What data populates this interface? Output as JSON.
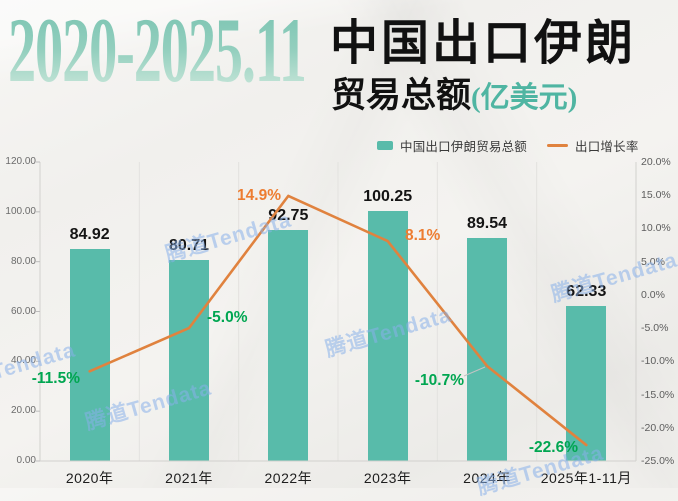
{
  "title": {
    "years": "2020-2025.11",
    "line1": "中国出口伊朗",
    "line2": "贸易总额",
    "line2_unit": "(亿美元)"
  },
  "legend": {
    "bar_label": "中国出口伊朗贸易总额",
    "line_label": "出口增长率"
  },
  "watermark": {
    "text": "腾道Tendata"
  },
  "colors": {
    "bar": "#58bbaa",
    "line": "#e0823e",
    "label_positive": "#ed7d31",
    "label_negative": "#00a651",
    "title_teal": "#4fb5a2",
    "grid": "#e3e2df",
    "axis": "#d2d1ce"
  },
  "chart_data": {
    "type": "bar+line combo",
    "categories": [
      "2020年",
      "2021年",
      "2022年",
      "2023年",
      "2024年",
      "2025年1-11月"
    ],
    "series": [
      {
        "name": "中国出口伊朗贸易总额",
        "type": "bar",
        "axis": "left",
        "values": [
          84.92,
          80.71,
          92.75,
          100.25,
          89.54,
          62.33
        ],
        "value_labels": [
          "84.92",
          "80.71",
          "92.75",
          "100.25",
          "89.54",
          "62.33"
        ]
      },
      {
        "name": "出口增长率",
        "type": "line",
        "axis": "right",
        "values": [
          -11.5,
          -5.0,
          14.9,
          8.1,
          -10.7,
          -22.6
        ],
        "value_labels": [
          "-11.5%",
          "-5.0%",
          "14.9%",
          "8.1%",
          "-10.7%",
          "-22.6%"
        ]
      }
    ],
    "left_axis": {
      "min": 0,
      "max": 120,
      "step": 20,
      "tick_labels": [
        "120.00",
        "100.00",
        "80.00",
        "60.00",
        "40.00",
        "20.00",
        "0.00"
      ]
    },
    "right_axis": {
      "min": -25,
      "max": 20,
      "step": 5,
      "tick_labels": [
        "20.0%",
        "15.0%",
        "10.0%",
        "5.0%",
        "0.0%",
        "-5.0%",
        "-10.0%",
        "-15.0%",
        "-20.0%",
        "-25.0%"
      ]
    },
    "grid": "vertical category separators only",
    "legend_position": "top-right above plot"
  }
}
